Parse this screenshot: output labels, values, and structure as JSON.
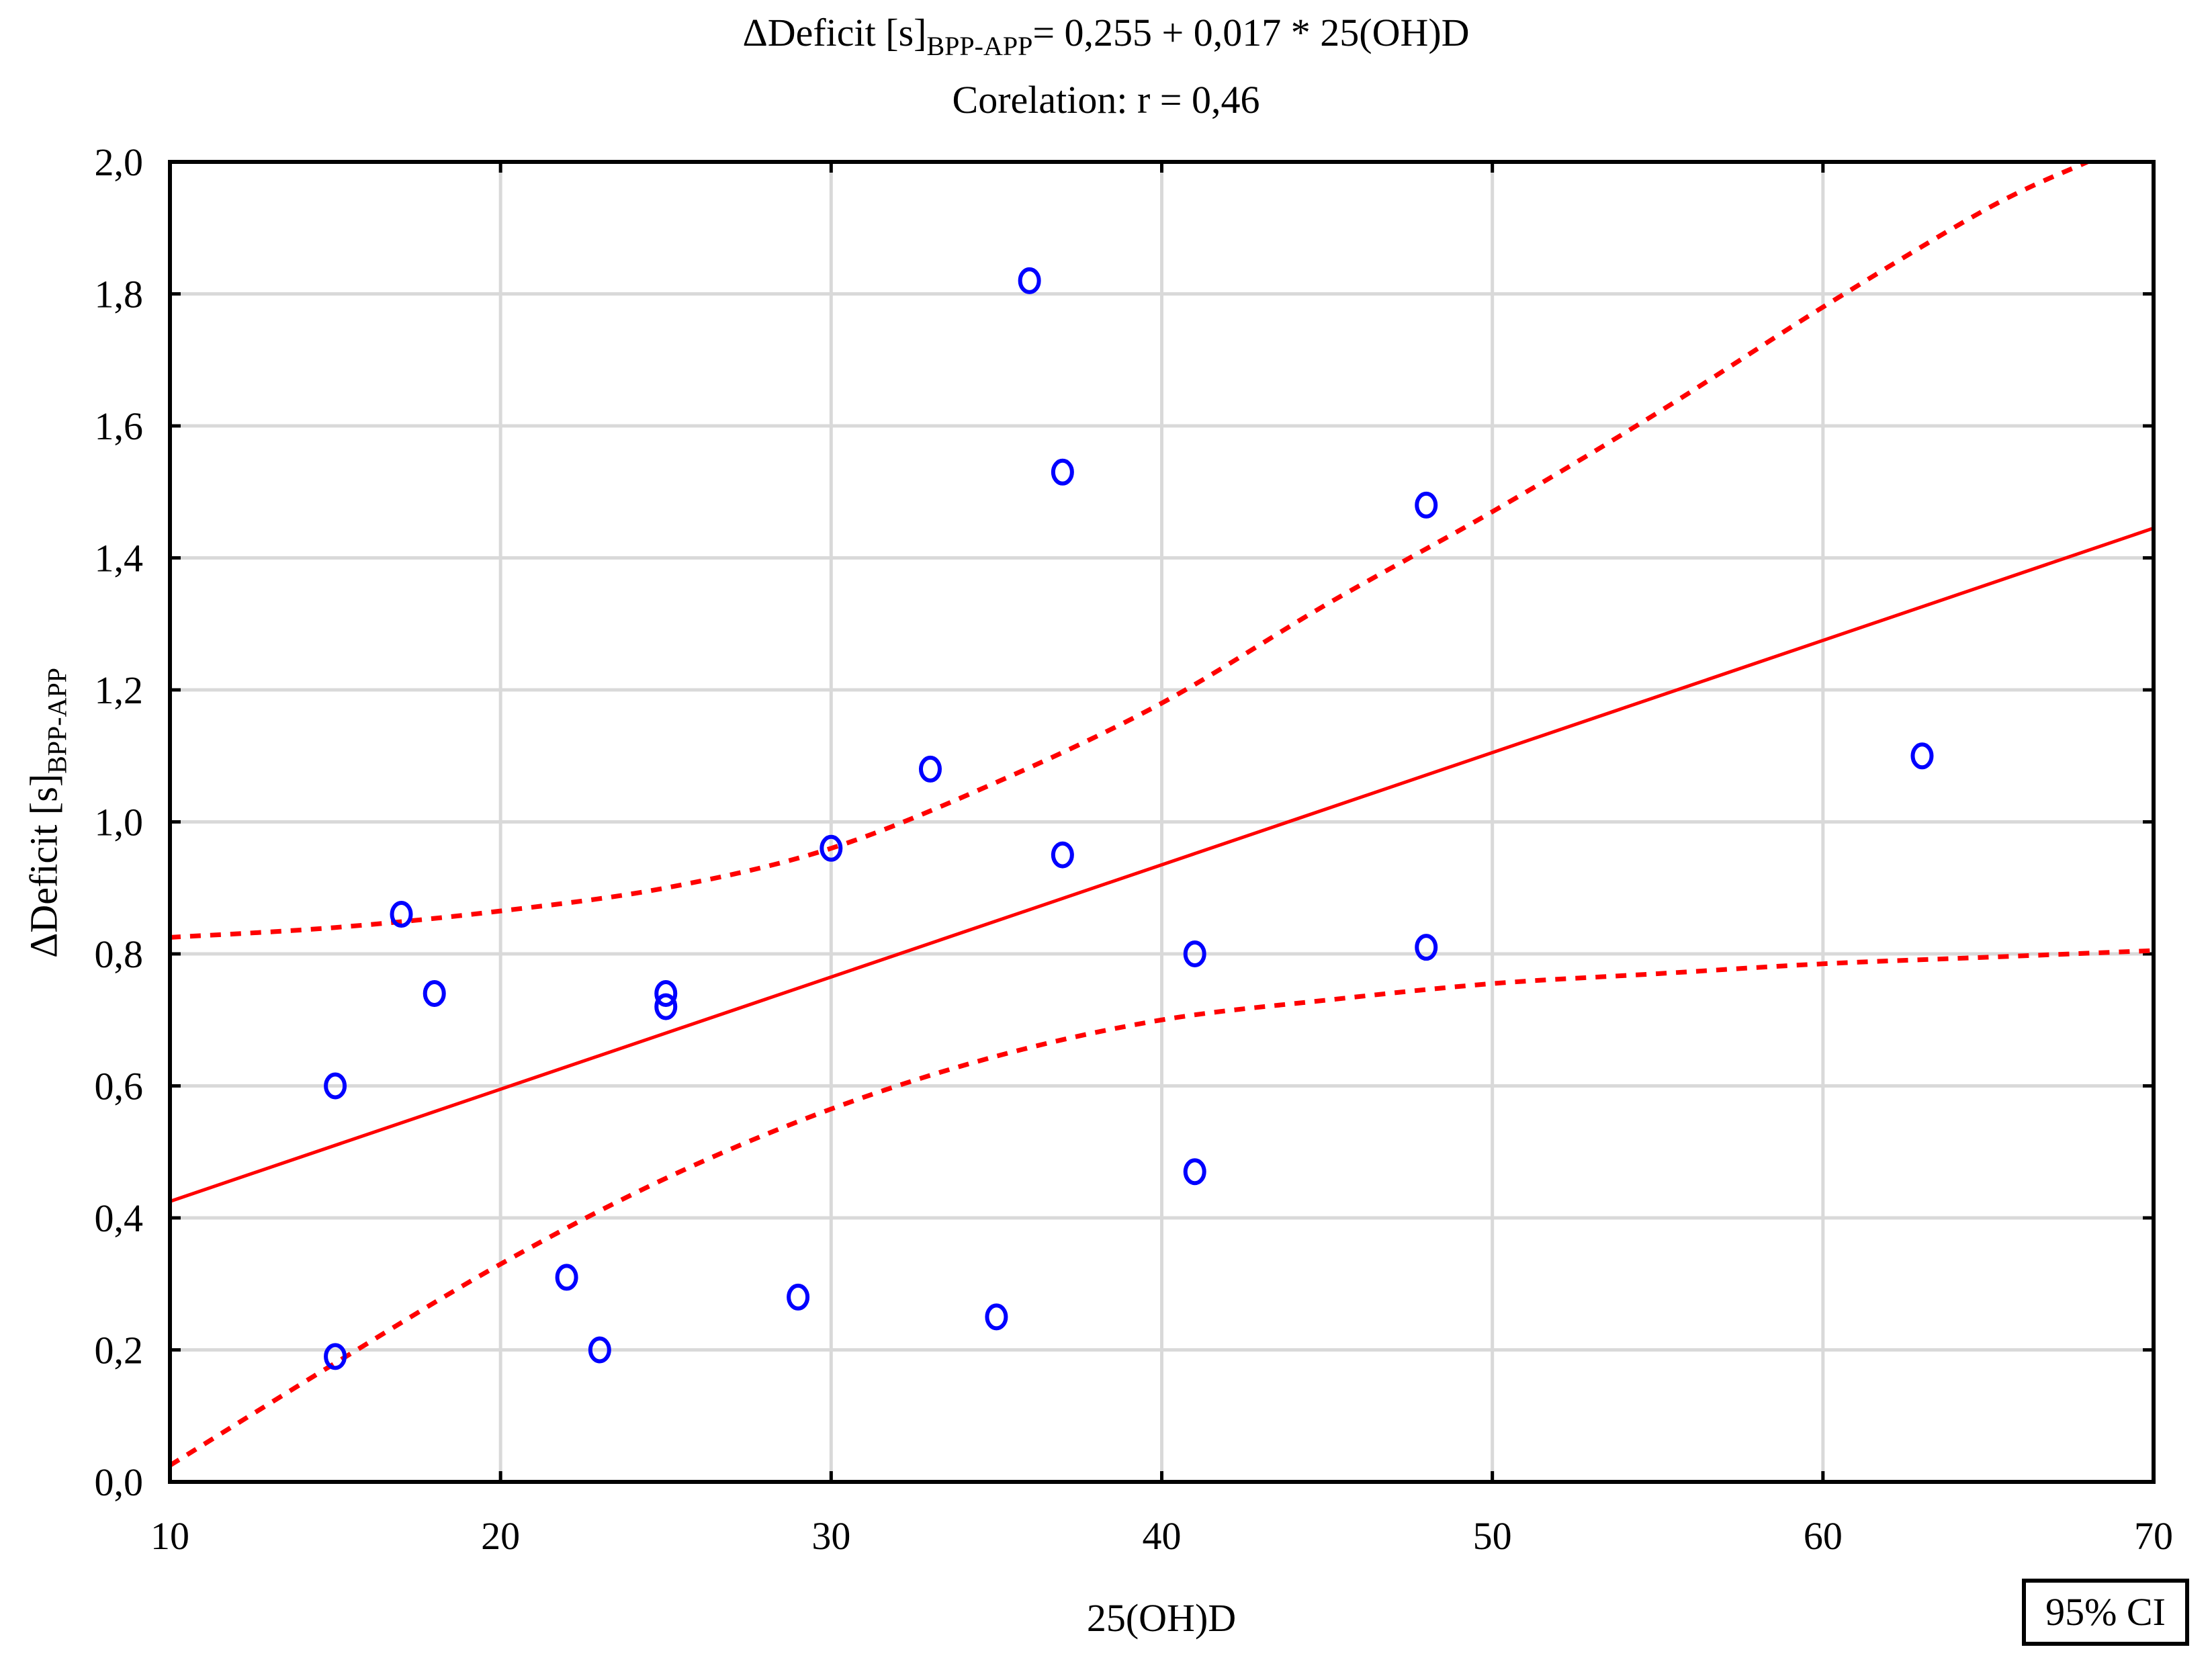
{
  "chart_data": {
    "type": "scatter",
    "title": "ΔDeficit [s]BPP-APP= 0,255 + 0,017 * 25(OH)D",
    "title_parts": {
      "main": "ΔDeficit [s]",
      "sub": "BPP-APP",
      "rest": "= 0,255 + 0,017 * 25(OH)D"
    },
    "subtitle": "Corelation: r = 0,46",
    "xlabel": "25(OH)D",
    "ylabel": "ΔDeficit [s]BPP-APP",
    "ylabel_parts": {
      "main": "ΔDeficit [s]",
      "sub": "BPP-APP"
    },
    "xlim": [
      10,
      70
    ],
    "ylim": [
      0.0,
      2.0
    ],
    "x_ticks": [
      "10",
      "20",
      "30",
      "40",
      "50",
      "60",
      "70"
    ],
    "x_tick_values": [
      10,
      20,
      30,
      40,
      50,
      60,
      70
    ],
    "y_ticks": [
      "0,0",
      "0,2",
      "0,4",
      "0,6",
      "0,8",
      "1,0",
      "1,2",
      "1,4",
      "1,6",
      "1,8",
      "2,0"
    ],
    "y_tick_values": [
      0,
      0.2,
      0.4,
      0.6,
      0.8,
      1.0,
      1.2,
      1.4,
      1.6,
      1.8,
      2.0
    ],
    "grid": true,
    "legend": {
      "label": "95% CI",
      "position": "bottom-right"
    },
    "points": {
      "x": [
        15,
        15,
        17,
        18,
        22,
        23,
        25,
        25,
        29,
        30,
        33,
        35,
        36,
        37,
        37,
        41,
        41,
        48,
        48,
        63
      ],
      "y": [
        0.6,
        0.19,
        0.86,
        0.74,
        0.31,
        0.2,
        0.74,
        0.72,
        0.28,
        0.96,
        1.08,
        0.25,
        1.82,
        1.53,
        0.95,
        0.8,
        0.47,
        1.48,
        0.81,
        1.1
      ],
      "color": "#0000ff",
      "marker": "open-circle"
    },
    "regression": {
      "intercept": 0.255,
      "slope": 0.017,
      "color": "#ff0000",
      "style": "solid"
    },
    "ci_upper": {
      "x": [
        10,
        15,
        20,
        25,
        30,
        35,
        40,
        45,
        50,
        55,
        60,
        65,
        68
      ],
      "y": [
        0.825,
        0.84,
        0.865,
        0.9,
        0.96,
        1.06,
        1.18,
        1.33,
        1.47,
        1.62,
        1.78,
        1.93,
        2.0
      ],
      "color": "#ff0000",
      "style": "dashed"
    },
    "ci_lower": {
      "x": [
        10,
        15,
        20,
        25,
        30,
        35,
        40,
        45,
        50,
        55,
        60,
        65,
        70
      ],
      "y": [
        0.025,
        0.18,
        0.33,
        0.46,
        0.565,
        0.645,
        0.7,
        0.73,
        0.755,
        0.77,
        0.785,
        0.795,
        0.805
      ],
      "color": "#ff0000",
      "style": "dashed"
    },
    "colors": {
      "grid": "#d9d9d9",
      "axis": "#000000"
    }
  }
}
